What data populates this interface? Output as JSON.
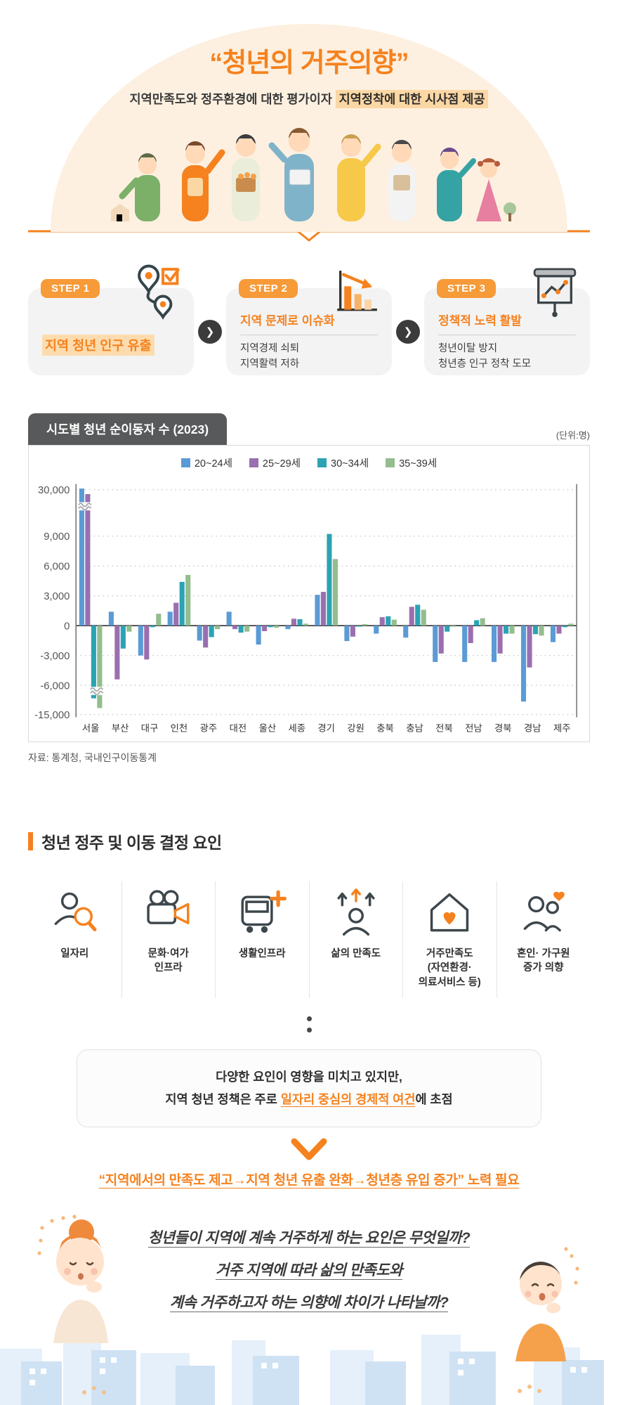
{
  "header": {
    "title": "“청년의 거주의향”",
    "subtitle_prefix": "지역만족도와 정주환경에 대한 평가이자 ",
    "subtitle_highlight": "지역정착에 대한 시사점 제공"
  },
  "steps": [
    {
      "badge": "STEP 1",
      "title": "지역 청년 인구 유출",
      "lines": [],
      "icon": "route-pins-icon"
    },
    {
      "badge": "STEP 2",
      "title": "지역 문제로 이슈화",
      "lines": [
        "지역경제 쇠퇴",
        "지역활력 저하"
      ],
      "icon": "declining-chart-icon"
    },
    {
      "badge": "STEP 3",
      "title": "정책적 노력 활발",
      "lines": [
        "청년이탈 방지",
        "청년층 인구 정착 도모"
      ],
      "icon": "presentation-chart-icon"
    }
  ],
  "chart": {
    "title": "시도별 청년 순이동자 수 (2023)",
    "unit": "(단위:명)",
    "source": "자료: 통계청, 국내인구이동통계"
  },
  "chart_data": {
    "type": "bar",
    "title": "시도별 청년 순이동자 수 (2023)",
    "unit": "명",
    "categories": [
      "서울",
      "부산",
      "대구",
      "인천",
      "광주",
      "대전",
      "울산",
      "세종",
      "경기",
      "강원",
      "충북",
      "충남",
      "전북",
      "전남",
      "경북",
      "경남",
      "제주"
    ],
    "series": [
      {
        "name": "20~24세",
        "color": "#5b9bd5",
        "values": [
          30500,
          1400,
          -3000,
          1400,
          -1500,
          1400,
          -1900,
          -350,
          3100,
          -1550,
          -800,
          -1200,
          -3650,
          -3650,
          -3650,
          -11000,
          -1650
        ]
      },
      {
        "name": "25~29세",
        "color": "#9a6fb0",
        "values": [
          28000,
          -5400,
          -3400,
          2300,
          -2200,
          -350,
          -550,
          700,
          3400,
          -1100,
          850,
          1900,
          -2800,
          -1750,
          -2800,
          -4200,
          -800
        ]
      },
      {
        "name": "30~34세",
        "color": "#2ba3b4",
        "values": [
          -10000,
          -2300,
          -150,
          4400,
          -1150,
          -700,
          -150,
          650,
          10000,
          -100,
          950,
          2100,
          -600,
          550,
          -800,
          -850,
          -150
        ]
      },
      {
        "name": "35~39세",
        "color": "#93bd8d",
        "values": [
          -13000,
          -600,
          1200,
          5100,
          -350,
          -600,
          -200,
          200,
          6700,
          150,
          600,
          1600,
          -100,
          750,
          -800,
          -1000,
          200
        ]
      }
    ],
    "yticks": [
      30000,
      9000,
      6000,
      3000,
      0,
      -3000,
      -6000,
      -15000
    ],
    "axis_break": {
      "upper": [
        9000,
        30000
      ],
      "lower": [
        -6000,
        -15000
      ],
      "break_marks_on": "서울"
    },
    "grid": "dotted horizontal",
    "legend_position": "top-center"
  },
  "factors": {
    "section_title": "청년 정주 및 이동 결정 요인",
    "items": [
      {
        "label_lines": [
          "일자리"
        ],
        "icon": "job-search-icon"
      },
      {
        "label_lines": [
          "문화·여가",
          "인프라"
        ],
        "icon": "culture-leisure-icon"
      },
      {
        "label_lines": [
          "생활인프라"
        ],
        "icon": "living-infra-icon"
      },
      {
        "label_lines": [
          "삶의 만족도"
        ],
        "icon": "life-satisfaction-icon"
      },
      {
        "label_lines": [
          "거주만족도",
          "(자연환경·",
          "의료서비스 등)"
        ],
        "icon": "residence-satisfaction-icon"
      },
      {
        "label_lines": [
          "혼인· 가구원",
          "증가 의향"
        ],
        "icon": "marriage-household-icon"
      }
    ]
  },
  "summary": {
    "line1": "다양한 요인이 영향을 미치고 있지만,",
    "line2_prefix": "지역 청년 정책은 주로 ",
    "line2_highlight": "일자리 중심의 경제적 여건",
    "line2_suffix": "에 초점",
    "statement": "“지역에서의 만족도 제고→지역 청년 유출 완화→청년층 유입 증가” 노력 필요"
  },
  "questions": {
    "lines": [
      "청년들이 지역에 계속 거주하게 하는 요인은 무엇일까?",
      "거주 지역에 따라 삶의 만족도와",
      "계속 거주하고자 하는 의향에 차이가 나타날까?"
    ]
  },
  "colors": {
    "accent_orange": "#f5821f",
    "badge_orange": "#f79a38",
    "highlight_peach": "#fbd7a4",
    "arc_cream": "#fdf0e0",
    "card_gray": "#f3f3f4",
    "tab_dark": "#58595b",
    "skyline_blue": "#cfe2f4"
  }
}
